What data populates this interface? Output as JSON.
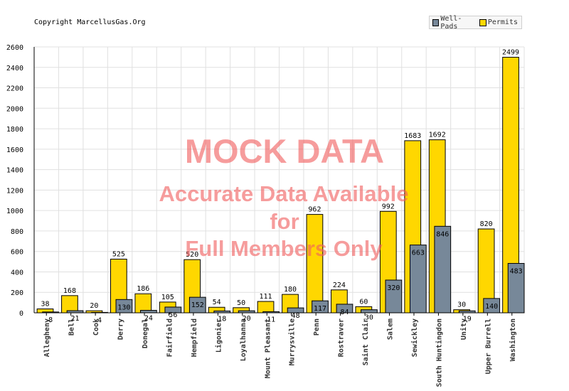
{
  "copyright": "Copyright MarcellusGas.Org",
  "watermark": {
    "title": "MOCK DATA",
    "line1": "Accurate Data Available",
    "line2": "for",
    "line3": "Full Members Only"
  },
  "colors": {
    "permits": "#ffd700",
    "well_pads": "#778899",
    "grid": "#e0e0e0",
    "axis": "#000000"
  },
  "chart_data": {
    "type": "bar",
    "categories": [
      "Allegheny",
      "Bell",
      "Cook",
      "Derry",
      "Donegal",
      "Fairfield",
      "Hempfield",
      "Ligonier",
      "Loyalhanna",
      "Mount Pleasant",
      "Murrysville",
      "Penn",
      "Rostraver",
      "Saint Clair",
      "Salem",
      "Sewickley",
      "South Huntingdon",
      "Unity",
      "Upper Burrell",
      "Washington"
    ],
    "series": [
      {
        "name": "Permits",
        "values": [
          38,
          168,
          20,
          525,
          186,
          105,
          520,
          54,
          50,
          111,
          180,
          962,
          224,
          60,
          992,
          1683,
          1692,
          30,
          820,
          2499
        ]
      },
      {
        "name": "Well-Pads",
        "values": [
          8,
          21,
          4,
          130,
          24,
          56,
          152,
          18,
          20,
          11,
          48,
          117,
          84,
          30,
          320,
          663,
          846,
          19,
          140,
          483
        ]
      }
    ],
    "ylim": [
      0,
      2600
    ],
    "yticks": [
      0,
      200,
      400,
      600,
      800,
      1000,
      1200,
      1400,
      1600,
      1800,
      2000,
      2200,
      2400,
      2600
    ],
    "grid": true,
    "legend": "top-right"
  }
}
